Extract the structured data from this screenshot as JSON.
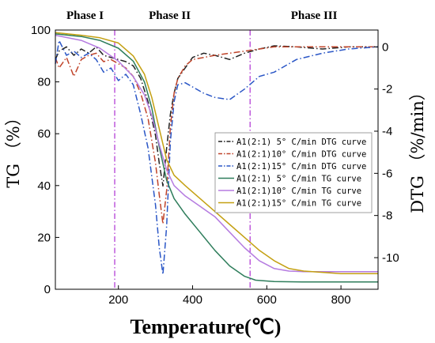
{
  "chart_data": {
    "type": "line",
    "xlabel": "Temperature(℃)",
    "ylabel_left": "TG （%）",
    "ylabel_right": "DTG （%/min）",
    "xlim": [
      30,
      900
    ],
    "ylim_left": [
      0,
      100
    ],
    "ylim_right": [
      -11.5,
      0.8
    ],
    "x_ticks": [
      200,
      400,
      600,
      800
    ],
    "y_ticks_left": [
      0,
      20,
      40,
      60,
      80,
      100
    ],
    "y_ticks_right": [
      0,
      -2,
      -4,
      -6,
      -8,
      -10
    ],
    "phase_lines": [
      190,
      555
    ],
    "phase_labels": [
      "Phase I",
      "Phase II",
      "Phase III"
    ],
    "grid": false,
    "legend_position": "right-middle",
    "series": [
      {
        "name": "A1(2:1) 5° C/min DTG curve",
        "axis": "right",
        "color": "#222222",
        "dash": "dashdot",
        "x": [
          30,
          40,
          60,
          80,
          100,
          120,
          140,
          160,
          180,
          200,
          220,
          240,
          260,
          280,
          300,
          310,
          320,
          330,
          340,
          350,
          360,
          380,
          400,
          430,
          460,
          500,
          540,
          580,
          620,
          680,
          750,
          820,
          900
        ],
        "y": [
          -0.6,
          -0.2,
          0.0,
          -0.4,
          -0.1,
          -0.3,
          0.0,
          -0.4,
          -0.5,
          -0.6,
          -0.7,
          -0.9,
          -1.5,
          -2.6,
          -4.2,
          -5.5,
          -6.6,
          -4.8,
          -3.2,
          -2.2,
          -1.5,
          -1.0,
          -0.5,
          -0.3,
          -0.4,
          -0.6,
          -0.3,
          -0.1,
          0.05,
          0.0,
          -0.1,
          0.0,
          0.0
        ]
      },
      {
        "name": "A1(2:1)10° C/min DTG curve",
        "axis": "right",
        "color": "#c0442a",
        "dash": "dashdot",
        "x": [
          30,
          40,
          60,
          80,
          100,
          120,
          140,
          160,
          180,
          200,
          220,
          240,
          260,
          280,
          300,
          310,
          320,
          330,
          340,
          350,
          360,
          380,
          400,
          430,
          460,
          500,
          540,
          580,
          620,
          680,
          750,
          820,
          900
        ],
        "y": [
          -0.5,
          -1.0,
          -0.5,
          -1.4,
          -0.6,
          -0.4,
          -0.3,
          -0.7,
          -0.6,
          -0.8,
          -1.0,
          -1.4,
          -2.2,
          -3.4,
          -5.5,
          -7.0,
          -8.4,
          -6.8,
          -3.8,
          -2.2,
          -1.5,
          -0.9,
          -0.6,
          -0.5,
          -0.4,
          -0.3,
          -0.2,
          -0.1,
          0.0,
          0.0,
          0.0,
          0.0,
          0.0
        ]
      },
      {
        "name": "A1(2:1)15° C/min DTG curve",
        "axis": "right",
        "color": "#2a56c6",
        "dash": "dashdot",
        "x": [
          30,
          40,
          60,
          80,
          100,
          120,
          140,
          160,
          180,
          200,
          220,
          240,
          260,
          280,
          300,
          310,
          320,
          330,
          340,
          350,
          360,
          380,
          400,
          430,
          460,
          500,
          540,
          580,
          620,
          680,
          750,
          820,
          900
        ],
        "y": [
          -0.8,
          0.3,
          -0.4,
          -0.2,
          -0.5,
          -0.3,
          -0.6,
          -1.2,
          -1.0,
          -1.6,
          -1.3,
          -1.8,
          -3.2,
          -4.8,
          -7.5,
          -9.5,
          -10.8,
          -8.5,
          -4.5,
          -2.6,
          -1.8,
          -1.7,
          -1.9,
          -2.2,
          -2.4,
          -2.5,
          -2.0,
          -1.4,
          -1.2,
          -0.6,
          -0.3,
          -0.1,
          0.0
        ]
      },
      {
        "name": "A1(2:1) 5° C/min TG curve",
        "axis": "left",
        "color": "#2e7d5b",
        "dash": "solid",
        "x": [
          30,
          100,
          150,
          200,
          240,
          270,
          290,
          310,
          330,
          350,
          380,
          420,
          460,
          500,
          540,
          570,
          620,
          700,
          800,
          900
        ],
        "y": [
          98.5,
          97.5,
          96.0,
          93.0,
          88.0,
          80.0,
          70.0,
          55.0,
          42.0,
          35.0,
          29.0,
          22.0,
          15.0,
          9.0,
          5.0,
          3.5,
          3.0,
          2.8,
          2.8,
          2.8
        ]
      },
      {
        "name": "A1(2:1)10° C/min TG curve",
        "axis": "left",
        "color": "#b57be0",
        "dash": "solid",
        "x": [
          30,
          100,
          150,
          200,
          240,
          270,
          290,
          310,
          330,
          350,
          380,
          420,
          460,
          500,
          540,
          580,
          620,
          660,
          700,
          800,
          900
        ],
        "y": [
          98.0,
          96.0,
          93.0,
          88.0,
          82.0,
          75.0,
          67.0,
          56.0,
          46.0,
          40.0,
          36.0,
          32.0,
          28.0,
          22.0,
          16.0,
          11.0,
          8.0,
          7.0,
          6.8,
          6.8,
          6.8
        ]
      },
      {
        "name": "A1(2:1)15° C/min TG curve",
        "axis": "left",
        "color": "#c4a012",
        "dash": "solid",
        "x": [
          30,
          100,
          150,
          200,
          240,
          270,
          290,
          310,
          330,
          350,
          380,
          420,
          460,
          500,
          540,
          580,
          620,
          660,
          700,
          800,
          900
        ],
        "y": [
          99.0,
          98.0,
          97.0,
          95.0,
          90.0,
          83.0,
          74.0,
          62.0,
          50.0,
          44.0,
          40.0,
          35.0,
          30.0,
          25.0,
          20.0,
          15.0,
          11.0,
          8.0,
          7.0,
          6.0,
          6.0
        ]
      }
    ]
  }
}
